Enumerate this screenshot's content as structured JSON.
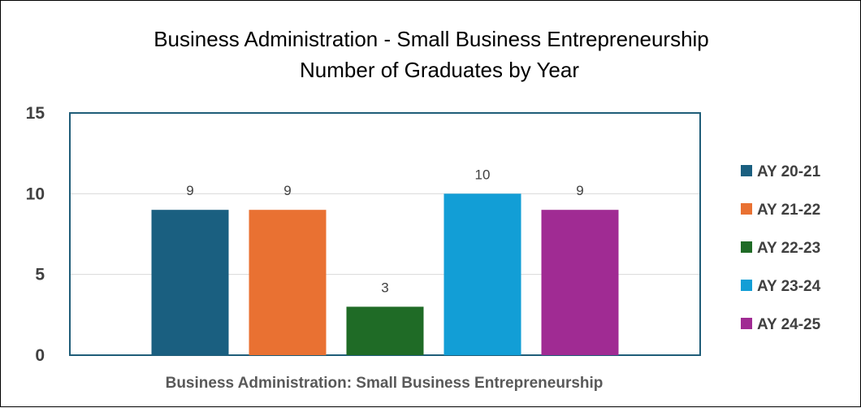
{
  "chart_data": {
    "type": "bar",
    "title_line1": "Business Administration - Small Business Entrepreneurship",
    "title_line2": "Number of Graduates by Year",
    "xlabel": "Business Administration: Small Business  Entrepreneurship",
    "ylabel": "",
    "categories": [
      "Business Administration: Small Business  Entrepreneurship"
    ],
    "ylim": [
      0,
      15
    ],
    "yticks": [
      0,
      5,
      10,
      15
    ],
    "grid": true,
    "legend_position": "right",
    "series": [
      {
        "name": "AY 20-21",
        "values": [
          9
        ],
        "color": "#1a5f80"
      },
      {
        "name": "AY 21-22",
        "values": [
          9
        ],
        "color": "#e97132"
      },
      {
        "name": "AY 22-23",
        "values": [
          3
        ],
        "color": "#1f6b26"
      },
      {
        "name": "AY 23-24",
        "values": [
          10
        ],
        "color": "#129ed6"
      },
      {
        "name": "AY 24-25",
        "values": [
          9
        ],
        "color": "#a02b93"
      }
    ]
  }
}
